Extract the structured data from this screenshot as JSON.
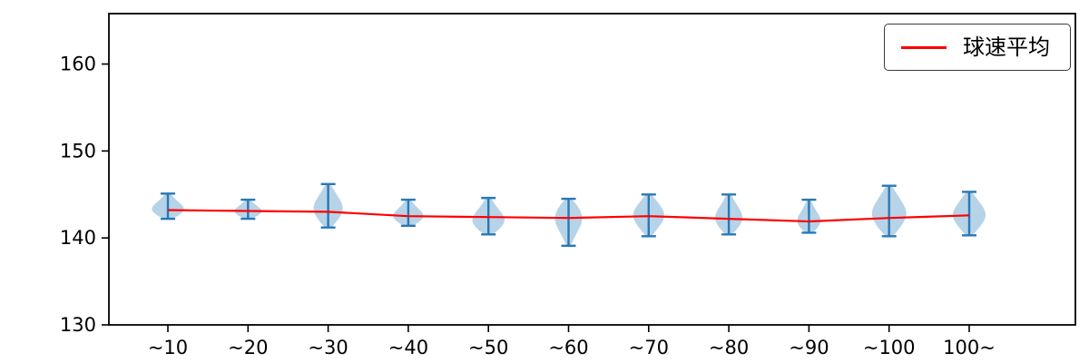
{
  "chart_data": {
    "type": "violin",
    "title": "",
    "xlabel": "",
    "ylabel": "",
    "grid": false,
    "legend": {
      "label": "球速平均",
      "position": "top-right"
    },
    "categories": [
      "~10",
      "~20",
      "~30",
      "~40",
      "~50",
      "~60",
      "~70",
      "~80",
      "~90",
      "~100",
      "100~"
    ],
    "yticks": [
      130,
      140,
      150,
      160
    ],
    "ylim": [
      130,
      165.8
    ],
    "colors": {
      "violin_fill": "#1f77b4",
      "violin_fill_opacity": 0.32,
      "violin_line": "#2878b5",
      "mean_line": "#ff0000",
      "axis": "#000000"
    },
    "series": [
      {
        "name": "球速平均",
        "type": "line",
        "values": [
          143.2,
          143.1,
          143.0,
          142.5,
          142.4,
          142.3,
          142.5,
          142.2,
          141.9,
          142.3,
          142.6
        ]
      }
    ],
    "violins": [
      {
        "category": "~10",
        "min": 142.2,
        "max": 145.1,
        "peak": 143.2,
        "mean": 143.2,
        "width": 0.95
      },
      {
        "category": "~20",
        "min": 142.2,
        "max": 144.4,
        "peak": 143.0,
        "mean": 143.1,
        "width": 0.8
      },
      {
        "category": "~30",
        "min": 141.2,
        "max": 146.2,
        "peak": 143.3,
        "mean": 143.0,
        "width": 0.85
      },
      {
        "category": "~40",
        "min": 141.4,
        "max": 144.4,
        "peak": 142.4,
        "mean": 142.5,
        "width": 0.9
      },
      {
        "category": "~50",
        "min": 140.4,
        "max": 144.6,
        "peak": 141.9,
        "mean": 142.4,
        "width": 0.95
      },
      {
        "category": "~60",
        "min": 139.1,
        "max": 144.5,
        "peak": 142.4,
        "mean": 142.3,
        "width": 0.8
      },
      {
        "category": "~70",
        "min": 140.2,
        "max": 145.0,
        "peak": 142.6,
        "mean": 142.5,
        "width": 0.9
      },
      {
        "category": "~80",
        "min": 140.4,
        "max": 145.0,
        "peak": 142.2,
        "mean": 142.2,
        "width": 0.8
      },
      {
        "category": "~90",
        "min": 140.6,
        "max": 144.4,
        "peak": 141.8,
        "mean": 141.9,
        "width": 0.7
      },
      {
        "category": "~100",
        "min": 140.2,
        "max": 146.0,
        "peak": 142.7,
        "mean": 142.3,
        "width": 1.0
      },
      {
        "category": "100~",
        "min": 140.3,
        "max": 145.3,
        "peak": 142.6,
        "mean": 142.6,
        "width": 0.95
      }
    ]
  }
}
